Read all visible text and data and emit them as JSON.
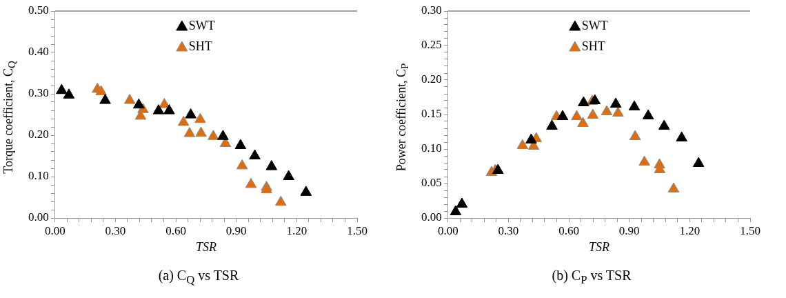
{
  "chart_data": [
    {
      "type": "scatter",
      "xlabel": "TSR",
      "ylabel": "Torque coefficient, C$_{Q}$",
      "marker": "triangle",
      "legend": "top",
      "grid": false,
      "annotations": [
        "(a) C$_{Q}$ vs TSR"
      ],
      "xlim": [
        0,
        1.5
      ],
      "ylim": [
        0,
        0.5
      ],
      "xticks": [
        {
          "value": 0,
          "label": "0.00"
        },
        {
          "value": 0.06,
          "label": null
        },
        {
          "value": 0.12,
          "label": null
        },
        {
          "value": 0.18,
          "label": null
        },
        {
          "value": 0.24,
          "label": null
        },
        {
          "value": 0.3,
          "label": "0.30"
        },
        {
          "value": 0.36,
          "label": null
        },
        {
          "value": 0.42,
          "label": null
        },
        {
          "value": 0.48,
          "label": null
        },
        {
          "value": 0.54,
          "label": null
        },
        {
          "value": 0.6,
          "label": "0.60"
        },
        {
          "value": 0.66,
          "label": null
        },
        {
          "value": 0.72,
          "label": null
        },
        {
          "value": 0.78,
          "label": null
        },
        {
          "value": 0.84,
          "label": null
        },
        {
          "value": 0.9,
          "label": "0.90"
        },
        {
          "value": 0.96,
          "label": null
        },
        {
          "value": 1.02,
          "label": null
        },
        {
          "value": 1.08,
          "label": null
        },
        {
          "value": 1.14,
          "label": null
        },
        {
          "value": 1.2,
          "label": "1.20"
        },
        {
          "value": 1.26,
          "label": null
        },
        {
          "value": 1.32,
          "label": null
        },
        {
          "value": 1.38,
          "label": null
        },
        {
          "value": 1.44,
          "label": null
        },
        {
          "value": 1.5,
          "label": "1.50"
        }
      ],
      "yticks": [
        {
          "value": 0,
          "label": "0.00"
        },
        {
          "value": 0.02,
          "label": null
        },
        {
          "value": 0.04,
          "label": null
        },
        {
          "value": 0.06,
          "label": null
        },
        {
          "value": 0.08,
          "label": null
        },
        {
          "value": 0.1,
          "label": "0.10"
        },
        {
          "value": 0.12,
          "label": null
        },
        {
          "value": 0.14,
          "label": null
        },
        {
          "value": 0.16,
          "label": null
        },
        {
          "value": 0.18,
          "label": null
        },
        {
          "value": 0.2,
          "label": "0.20"
        },
        {
          "value": 0.22,
          "label": null
        },
        {
          "value": 0.24,
          "label": null
        },
        {
          "value": 0.26,
          "label": null
        },
        {
          "value": 0.28,
          "label": null
        },
        {
          "value": 0.3,
          "label": "0.30"
        },
        {
          "value": 0.32,
          "label": null
        },
        {
          "value": 0.34,
          "label": null
        },
        {
          "value": 0.36,
          "label": null
        },
        {
          "value": 0.38,
          "label": null
        },
        {
          "value": 0.4,
          "label": "0.40"
        },
        {
          "value": 0.42,
          "label": null
        },
        {
          "value": 0.44,
          "label": null
        },
        {
          "value": 0.46,
          "label": null
        },
        {
          "value": 0.48,
          "label": null
        },
        {
          "value": 0.5,
          "label": "0.50"
        }
      ],
      "series": [
        {
          "name": "SWT",
          "color": "#000000",
          "x": [
            0.033,
            0.069,
            0.249,
            0.416,
            0.514,
            0.567,
            0.674,
            0.834,
            0.921,
            0.992,
            1.075,
            1.16,
            1.246
          ],
          "values": [
            0.308,
            0.297,
            0.284,
            0.273,
            0.259,
            0.259,
            0.249,
            0.197,
            0.175,
            0.15,
            0.124,
            0.1,
            0.062
          ]
        },
        {
          "name": "SHT",
          "color": "#e36c0a",
          "x": [
            0.211,
            0.229,
            0.371,
            0.437,
            0.425,
            0.543,
            0.638,
            0.668,
            0.721,
            0.725,
            0.786,
            0.846,
            0.929,
            0.973,
            1.05,
            1.05,
            1.121
          ],
          "values": [
            0.311,
            0.305,
            0.284,
            0.262,
            0.246,
            0.274,
            0.231,
            0.204,
            0.238,
            0.205,
            0.197,
            0.18,
            0.126,
            0.081,
            0.074,
            0.068,
            0.038
          ]
        }
      ]
    },
    {
      "type": "scatter",
      "xlabel": "TSR",
      "ylabel": "Power coefficient, C$_{P}$",
      "marker": "triangle",
      "legend": "top",
      "grid": false,
      "annotations": [
        "(b) C$_{P}$ vs TSR"
      ],
      "xlim": [
        0,
        1.5
      ],
      "ylim": [
        0,
        0.3
      ],
      "xticks": [
        {
          "value": 0,
          "label": "0.00"
        },
        {
          "value": 0.06,
          "label": null
        },
        {
          "value": 0.12,
          "label": null
        },
        {
          "value": 0.18,
          "label": null
        },
        {
          "value": 0.24,
          "label": null
        },
        {
          "value": 0.3,
          "label": "0.30"
        },
        {
          "value": 0.36,
          "label": null
        },
        {
          "value": 0.42,
          "label": null
        },
        {
          "value": 0.48,
          "label": null
        },
        {
          "value": 0.54,
          "label": null
        },
        {
          "value": 0.6,
          "label": "0.60"
        },
        {
          "value": 0.66,
          "label": null
        },
        {
          "value": 0.72,
          "label": null
        },
        {
          "value": 0.78,
          "label": null
        },
        {
          "value": 0.84,
          "label": null
        },
        {
          "value": 0.9,
          "label": "0.90"
        },
        {
          "value": 0.96,
          "label": null
        },
        {
          "value": 1.02,
          "label": null
        },
        {
          "value": 1.08,
          "label": null
        },
        {
          "value": 1.14,
          "label": null
        },
        {
          "value": 1.2,
          "label": "1.20"
        },
        {
          "value": 1.26,
          "label": null
        },
        {
          "value": 1.32,
          "label": null
        },
        {
          "value": 1.38,
          "label": null
        },
        {
          "value": 1.44,
          "label": null
        },
        {
          "value": 1.5,
          "label": "1.50"
        }
      ],
      "yticks": [
        {
          "value": 0,
          "label": "0.00"
        },
        {
          "value": 0.01,
          "label": null
        },
        {
          "value": 0.02,
          "label": null
        },
        {
          "value": 0.03,
          "label": null
        },
        {
          "value": 0.04,
          "label": null
        },
        {
          "value": 0.05,
          "label": "0.05"
        },
        {
          "value": 0.06,
          "label": null
        },
        {
          "value": 0.07,
          "label": null
        },
        {
          "value": 0.08,
          "label": null
        },
        {
          "value": 0.09,
          "label": null
        },
        {
          "value": 0.1,
          "label": "0.10"
        },
        {
          "value": 0.11,
          "label": null
        },
        {
          "value": 0.12,
          "label": null
        },
        {
          "value": 0.13,
          "label": null
        },
        {
          "value": 0.14,
          "label": null
        },
        {
          "value": 0.15,
          "label": "0.15"
        },
        {
          "value": 0.16,
          "label": null
        },
        {
          "value": 0.17,
          "label": null
        },
        {
          "value": 0.18,
          "label": null
        },
        {
          "value": 0.19,
          "label": null
        },
        {
          "value": 0.2,
          "label": "0.20"
        },
        {
          "value": 0.21,
          "label": null
        },
        {
          "value": 0.22,
          "label": null
        },
        {
          "value": 0.23,
          "label": null
        },
        {
          "value": 0.24,
          "label": null
        },
        {
          "value": 0.25,
          "label": "0.25"
        },
        {
          "value": 0.26,
          "label": null
        },
        {
          "value": 0.27,
          "label": null
        },
        {
          "value": 0.28,
          "label": null
        },
        {
          "value": 0.29,
          "label": null
        },
        {
          "value": 0.3,
          "label": "0.30"
        }
      ],
      "series": [
        {
          "name": "SWT",
          "color": "#000000",
          "x": [
            0.038,
            0.069,
            0.248,
            0.413,
            0.516,
            0.569,
            0.673,
            0.729,
            0.833,
            0.925,
            0.994,
            1.073,
            1.16,
            1.244
          ],
          "values": [
            0.009,
            0.02,
            0.069,
            0.113,
            0.133,
            0.147,
            0.167,
            0.17,
            0.165,
            0.161,
            0.148,
            0.133,
            0.116,
            0.079
          ]
        },
        {
          "name": "SHT",
          "color": "#e36c0a",
          "x": [
            0.216,
            0.235,
            0.37,
            0.425,
            0.438,
            0.539,
            0.639,
            0.67,
            0.716,
            0.719,
            0.788,
            0.844,
            0.929,
            0.975,
            1.05,
            1.051,
            1.12
          ],
          "values": [
            0.066,
            0.069,
            0.105,
            0.104,
            0.115,
            0.147,
            0.147,
            0.137,
            0.169,
            0.149,
            0.154,
            0.152,
            0.118,
            0.081,
            0.077,
            0.07,
            0.042
          ]
        }
      ]
    }
  ]
}
